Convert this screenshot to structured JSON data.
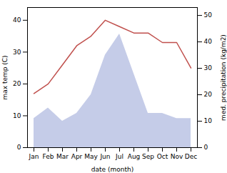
{
  "chart_data": {
    "type": "line",
    "categories": [
      "Jan",
      "Feb",
      "Mar",
      "Apr",
      "May",
      "Jun",
      "Jul",
      "Aug",
      "Sep",
      "Oct",
      "Nov",
      "Dec"
    ],
    "series": [
      {
        "type": "area",
        "axis": "y2",
        "color": "#c5cce8",
        "values": [
          11,
          15,
          10,
          13,
          20,
          35,
          43,
          28,
          13,
          13,
          11,
          11
        ]
      },
      {
        "type": "line",
        "color": "#c0504d",
        "values": [
          17,
          20,
          26,
          32,
          35,
          40,
          38,
          36,
          36,
          33,
          33,
          25
        ]
      }
    ],
    "xlabel": "date (month)",
    "ylabel": "max temp (C)",
    "y2label": "med. precipitation (kg/m2)",
    "ylim": [
      0,
      44
    ],
    "yticks": [
      0,
      10,
      20,
      30,
      40
    ],
    "y2lim": [
      0,
      53
    ],
    "y2ticks": [
      0,
      10,
      20,
      30,
      40,
      50
    ],
    "grid": false
  }
}
